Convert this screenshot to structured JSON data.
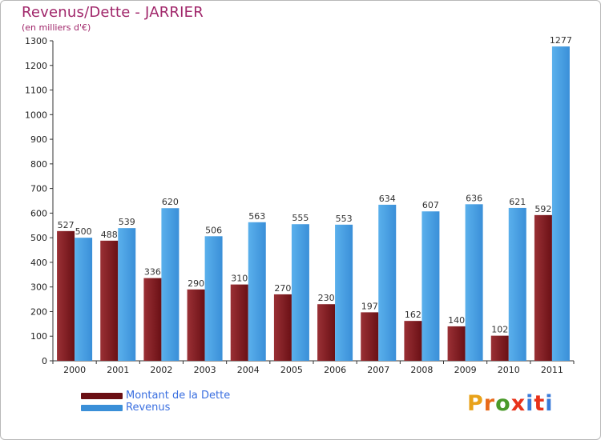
{
  "title": "Revenus/Dette - JARRIER",
  "subtitle": "(en milliers d'€)",
  "legend": {
    "debt_label": "Montant de la Dette",
    "revenue_label": "Revenus"
  },
  "brand": {
    "letters": [
      "P",
      "r",
      "o",
      "x",
      "i",
      "t",
      "i"
    ],
    "colors": [
      "#e8a21a",
      "#e86a1a",
      "#4a9a2a",
      "#e8321a",
      "#3a7ad8",
      "#e8321a",
      "#3a7ad8"
    ]
  },
  "colors": {
    "debt": "#7a1a1f",
    "debt_light": "#8f2a2f",
    "revenue": "#4aa3e6",
    "revenue_dark": "#2f86cf",
    "title": "#a0266a",
    "legend_text": "#3a6fe0"
  },
  "chart_data": {
    "type": "bar",
    "title": "Revenus/Dette - JARRIER",
    "ylabel": "(en milliers d'€)",
    "xlabel": "",
    "categories": [
      "2000",
      "2001",
      "2002",
      "2003",
      "2004",
      "2005",
      "2006",
      "2007",
      "2008",
      "2009",
      "2010",
      "2011"
    ],
    "series": [
      {
        "name": "Montant de la Dette",
        "values": [
          527,
          488,
          336,
          290,
          310,
          270,
          230,
          197,
          162,
          140,
          102,
          592
        ]
      },
      {
        "name": "Revenus",
        "values": [
          500,
          539,
          620,
          506,
          563,
          555,
          553,
          634,
          607,
          636,
          621,
          1277
        ]
      }
    ],
    "yticks": [
      0,
      100,
      200,
      300,
      400,
      500,
      600,
      700,
      800,
      900,
      1000,
      1100,
      1200,
      1300
    ],
    "ylim": [
      0,
      1300
    ],
    "grid": false,
    "legend_position": "bottom-left"
  }
}
